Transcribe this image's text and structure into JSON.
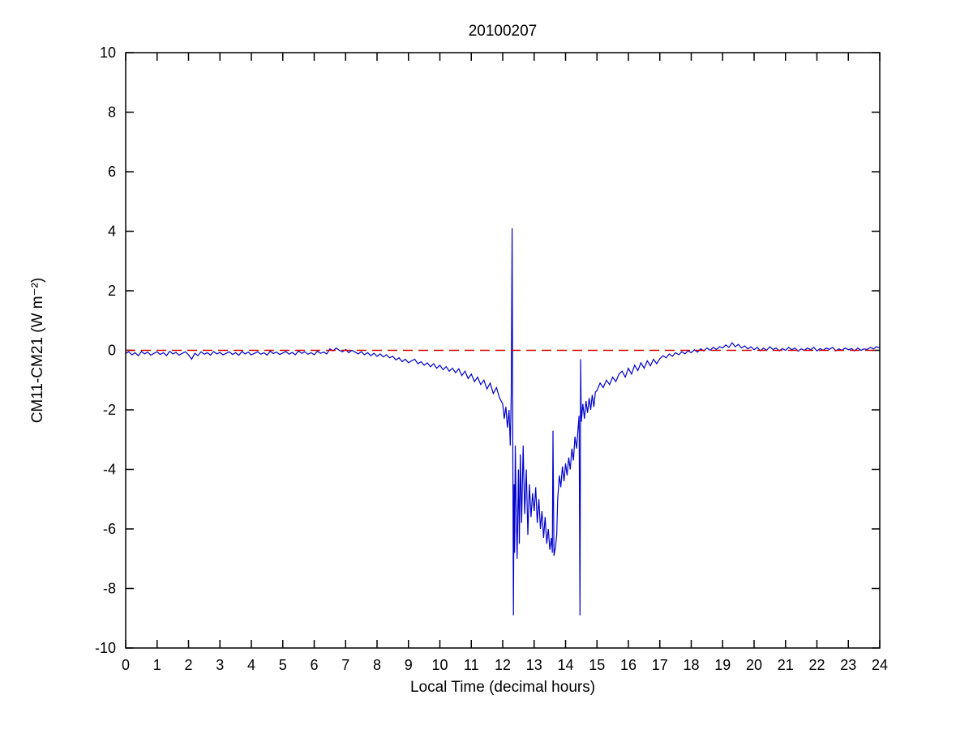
{
  "chart_data": {
    "type": "line",
    "title": "20100207",
    "xlabel": "Local Time (decimal hours)",
    "ylabel": "CM11-CM21 (W m⁻²)",
    "xlim": [
      0,
      24
    ],
    "ylim": [
      -10,
      10
    ],
    "x_ticks": [
      0,
      1,
      2,
      3,
      4,
      5,
      6,
      7,
      8,
      9,
      10,
      11,
      12,
      13,
      14,
      15,
      16,
      17,
      18,
      19,
      20,
      21,
      22,
      23,
      24
    ],
    "y_ticks": [
      -10,
      -8,
      -6,
      -4,
      -2,
      0,
      2,
      4,
      6,
      8,
      10
    ],
    "grid": false,
    "legend": "none",
    "colors": {
      "background": "#FFFFFF",
      "axis": "#000000",
      "series_blue": "#0000CC",
      "reference_red": "#CC0000"
    },
    "series": [
      {
        "name": "CM11-CM21 difference",
        "color": "#0000CC",
        "style": "solid",
        "segments": [
          {
            "x_start": 0.0,
            "x_step": 0.1,
            "y": [
              -0.1,
              -0.05,
              -0.15,
              -0.08,
              -0.18,
              -0.04,
              -0.12,
              -0.06,
              -0.16,
              -0.1,
              -0.05,
              -0.14,
              -0.08,
              -0.18,
              -0.03,
              -0.12,
              -0.07,
              -0.16,
              -0.1,
              -0.05,
              -0.15,
              -0.3,
              -0.1,
              -0.18,
              -0.05,
              -0.13,
              -0.08,
              -0.16,
              -0.04,
              -0.12,
              -0.07,
              -0.15,
              -0.1,
              -0.05,
              -0.14,
              -0.08,
              -0.17,
              -0.04,
              -0.12,
              -0.06,
              -0.15,
              -0.1,
              -0.05,
              -0.13,
              -0.08,
              -0.16,
              -0.03,
              -0.11,
              -0.06,
              -0.14,
              -0.09,
              -0.04,
              -0.13,
              -0.07,
              -0.15,
              -0.02,
              -0.1,
              -0.05,
              -0.13,
              -0.08,
              -0.15,
              -0.03,
              -0.1,
              -0.06,
              -0.12
            ]
          },
          {
            "x_start": 6.5,
            "x_step": 0.1,
            "y": [
              0.05,
              -0.02,
              0.08,
              0.0,
              -0.05,
              0.03,
              -0.08,
              0.0,
              -0.06,
              -0.12,
              -0.05,
              -0.15,
              -0.08,
              -0.18,
              -0.1,
              -0.2,
              -0.12,
              -0.22,
              -0.15,
              -0.25
            ]
          },
          {
            "x_start": 8.5,
            "x_step": 0.1,
            "y": [
              -0.2,
              -0.32,
              -0.25,
              -0.38,
              -0.3,
              -0.42,
              -0.35,
              -0.3,
              -0.45,
              -0.38,
              -0.5,
              -0.42,
              -0.55,
              -0.45,
              -0.6,
              -0.5,
              -0.65,
              -0.55,
              -0.7,
              -0.6
            ]
          },
          {
            "x_start": 10.5,
            "x_step": 0.1,
            "y": [
              -0.75,
              -0.62,
              -0.85,
              -0.7,
              -0.95,
              -0.8,
              -1.05,
              -0.9,
              -1.15,
              -1.0,
              -1.3,
              -1.1,
              -1.45,
              -1.25,
              -1.6
            ]
          },
          {
            "points": [
              [
                12.0,
                -1.8
              ],
              [
                12.05,
                -2.3
              ],
              [
                12.1,
                -1.9
              ],
              [
                12.15,
                -2.6
              ],
              [
                12.2,
                -2.0
              ],
              [
                12.24,
                -3.2
              ],
              [
                12.27,
                -1.5
              ],
              [
                12.3,
                4.1
              ],
              [
                12.32,
                -3.0
              ],
              [
                12.34,
                -8.9
              ],
              [
                12.36,
                -4.5
              ],
              [
                12.38,
                -6.8
              ],
              [
                12.4,
                -3.2
              ],
              [
                12.43,
                -5.5
              ],
              [
                12.46,
                -7.0
              ],
              [
                12.5,
                -4.0
              ],
              [
                12.53,
                -6.5
              ],
              [
                12.56,
                -3.5
              ],
              [
                12.6,
                -5.8
              ]
            ]
          },
          {
            "points": [
              [
                12.65,
                -3.2
              ],
              [
                12.7,
                -5.5
              ],
              [
                12.75,
                -4.0
              ],
              [
                12.8,
                -6.2
              ],
              [
                12.85,
                -4.5
              ],
              [
                12.9,
                -5.6
              ],
              [
                12.95,
                -4.8
              ],
              [
                13.0,
                -5.4
              ],
              [
                13.05,
                -4.6
              ],
              [
                13.1,
                -5.8
              ],
              [
                13.15,
                -5.0
              ],
              [
                13.2,
                -6.0
              ],
              [
                13.25,
                -5.4
              ],
              [
                13.3,
                -6.3
              ],
              [
                13.35,
                -5.6
              ],
              [
                13.4,
                -6.5
              ],
              [
                13.45,
                -6.0
              ],
              [
                13.5,
                -6.7
              ]
            ]
          },
          {
            "points": [
              [
                13.55,
                -6.3
              ],
              [
                13.58,
                -6.8
              ],
              [
                13.6,
                -2.7
              ],
              [
                13.63,
                -6.9
              ],
              [
                13.68,
                -6.6
              ],
              [
                13.72,
                -6.2
              ],
              [
                13.75,
                -5.0
              ],
              [
                13.8,
                -4.2
              ],
              [
                13.85,
                -4.6
              ],
              [
                13.9,
                -3.9
              ],
              [
                13.95,
                -4.4
              ],
              [
                14.0,
                -3.8
              ],
              [
                14.05,
                -4.2
              ],
              [
                14.1,
                -3.6
              ],
              [
                14.15,
                -4.0
              ],
              [
                14.2,
                -3.3
              ],
              [
                14.25,
                -3.7
              ],
              [
                14.3,
                -2.9
              ],
              [
                14.35,
                -3.3
              ],
              [
                14.4,
                -2.6
              ]
            ]
          },
          {
            "points": [
              [
                14.43,
                -2.2
              ],
              [
                14.46,
                -8.9
              ],
              [
                14.48,
                -0.3
              ],
              [
                14.5,
                -2.4
              ],
              [
                14.55,
                -1.8
              ],
              [
                14.6,
                -2.3
              ],
              [
                14.65,
                -1.7
              ],
              [
                14.7,
                -2.1
              ],
              [
                14.75,
                -1.6
              ],
              [
                14.8,
                -2.0
              ],
              [
                14.85,
                -1.5
              ],
              [
                14.9,
                -1.9
              ],
              [
                14.95,
                -1.4
              ]
            ]
          },
          {
            "x_start": 15.0,
            "x_step": 0.1,
            "y": [
              -1.35,
              -1.1,
              -1.25,
              -1.0,
              -1.15,
              -0.9,
              -1.05,
              -0.8,
              -0.7,
              -0.9,
              -0.6,
              -0.8,
              -0.5,
              -0.68,
              -0.42,
              -0.6,
              -0.35,
              -0.52,
              -0.3,
              -0.45
            ]
          },
          {
            "x_start": 17.0,
            "x_step": 0.1,
            "y": [
              -0.28,
              -0.18,
              -0.25,
              -0.12,
              -0.2,
              -0.08,
              -0.15,
              -0.05,
              -0.12,
              -0.02,
              -0.08,
              0.02,
              -0.06,
              0.05,
              -0.02,
              0.08,
              0.0,
              0.1,
              0.03,
              0.12
            ]
          },
          {
            "x_start": 19.0,
            "x_step": 0.1,
            "y": [
              0.08,
              0.18,
              0.1,
              0.25,
              0.12,
              0.2,
              0.08,
              0.15,
              0.05,
              0.12,
              0.02,
              0.1,
              -0.02,
              0.08,
              0.0,
              0.12,
              0.03,
              0.08,
              -0.02,
              0.06,
              0.0,
              0.1,
              0.02,
              0.08,
              -0.03,
              0.05,
              0.0,
              0.08,
              0.02,
              0.1,
              -0.02,
              0.06,
              0.0,
              0.08,
              0.03,
              0.1,
              -0.02,
              0.05,
              0.0,
              0.08,
              0.02,
              0.06,
              -0.02,
              0.08,
              0.0,
              0.05,
              0.03,
              0.1,
              0.05,
              0.12,
              0.08
            ]
          }
        ]
      },
      {
        "name": "zero reference line",
        "color": "#CC0000",
        "style": "dashed",
        "points": [
          [
            0,
            0
          ],
          [
            24,
            0
          ]
        ]
      }
    ]
  }
}
